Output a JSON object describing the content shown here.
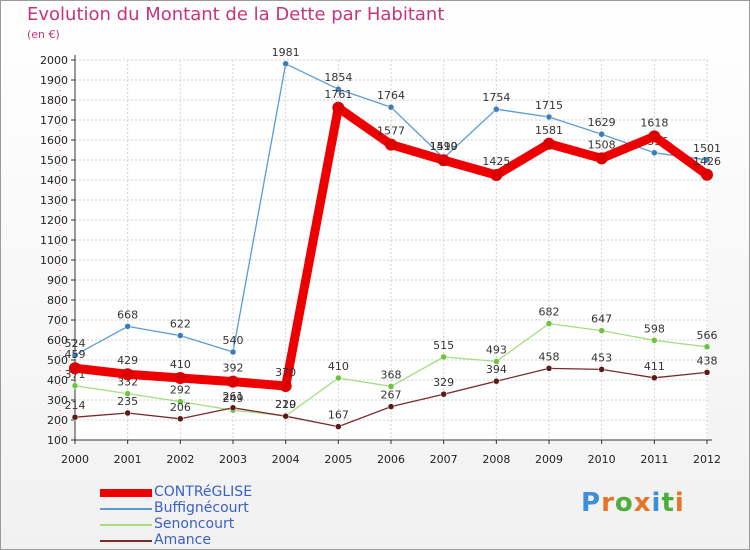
{
  "title": "Evolution du Montant de la Dette par Habitant",
  "unit_label": "(en €)",
  "logo": {
    "text": "Proxiti"
  },
  "chart_data": {
    "type": "line",
    "title": "Evolution du Montant de la Dette par Habitant",
    "ylabel": "(en €)",
    "xlabel": "",
    "x": [
      "2000",
      "2001",
      "2002",
      "2003",
      "2004",
      "2005",
      "2006",
      "2007",
      "2008",
      "2009",
      "2010",
      "2011",
      "2012"
    ],
    "ylim": [
      100,
      2000
    ],
    "yticks": [
      100,
      200,
      300,
      400,
      500,
      600,
      700,
      800,
      900,
      1000,
      1100,
      1200,
      1300,
      1400,
      1500,
      1600,
      1700,
      1800,
      1900,
      2000
    ],
    "grid": true,
    "legend_position": "bottom-left",
    "series": [
      {
        "name": "Buffignécourt",
        "color": "#5b9bd5",
        "dot_color": "#3a7cc0",
        "values": [
          524,
          668,
          622,
          540,
          1981,
          1854,
          1764,
          1510,
          1754,
          1715,
          1629,
          1536,
          1501
        ]
      },
      {
        "name": "Senoncourt",
        "color": "#a6dc82",
        "dot_color": "#6cc43c",
        "values": [
          371,
          332,
          292,
          249,
          220,
          410,
          368,
          515,
          493,
          682,
          647,
          598,
          566
        ]
      },
      {
        "name": "Amance",
        "color": "#7b2a2a",
        "dot_color": "#5a1a1a",
        "values": [
          214,
          235,
          206,
          261,
          219,
          167,
          267,
          329,
          394,
          458,
          453,
          411,
          438
        ]
      },
      {
        "name": "CONTRéGLISE",
        "color": "#ee0000",
        "dot_color": "#dd0000",
        "values": [
          459,
          429,
          410,
          392,
          370,
          1761,
          1577,
          1499,
          1425,
          1581,
          1508,
          1618,
          1426
        ]
      }
    ]
  }
}
